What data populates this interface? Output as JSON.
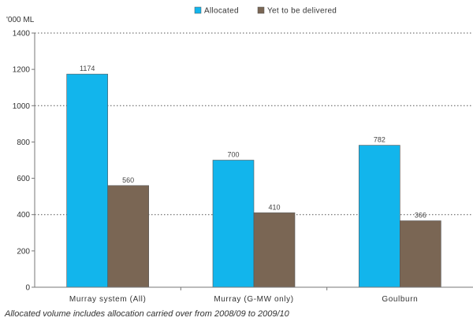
{
  "chart_data": {
    "type": "bar",
    "categories": [
      "Murray system (All)",
      "Murray (G-MW only)",
      "Goulburn"
    ],
    "series": [
      {
        "name": "Allocated",
        "values": [
          1174,
          700,
          782
        ],
        "color": "#12b5ec",
        "labels": [
          "1174",
          "700",
          "782"
        ]
      },
      {
        "name": "Yet to be delivered",
        "values": [
          560,
          410,
          366
        ],
        "color": "#7a6654",
        "labels": [
          "560",
          "410",
          "366"
        ]
      }
    ],
    "title": "",
    "xlabel": "",
    "ylabel": "'000 ML",
    "ylim": [
      0,
      1400
    ],
    "yticks": [
      0,
      200,
      400,
      600,
      800,
      1000,
      1200,
      1400
    ],
    "grid": "dotted horizontal at 400, 1000, 1400",
    "legend_position": "top-center",
    "caption": "Allocated volume includes allocation carried over from 2008/09 to 2009/10"
  }
}
